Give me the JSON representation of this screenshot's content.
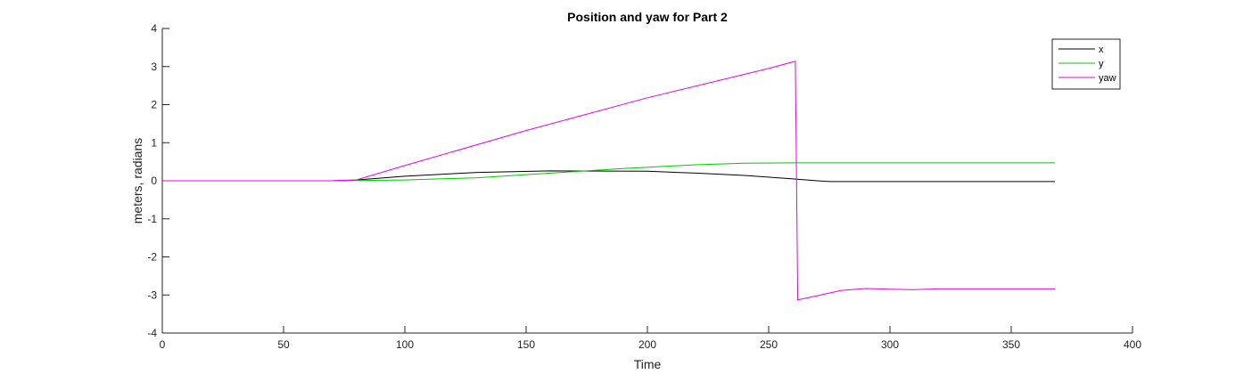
{
  "chart_data": {
    "type": "line",
    "title": "Position and yaw for Part 2",
    "xlabel": "Time",
    "ylabel": "meters, radians",
    "xlim": [
      0,
      400
    ],
    "ylim": [
      -4,
      4
    ],
    "xticks": [
      0,
      50,
      100,
      150,
      200,
      250,
      300,
      350,
      400
    ],
    "yticks": [
      4,
      3,
      2,
      1,
      0,
      -1,
      -2,
      -3,
      -4
    ],
    "grid": false,
    "legend_position": "top-right",
    "series": [
      {
        "name": "x",
        "color": "#000000",
        "x": [
          0,
          70,
          80,
          100,
          130,
          160,
          200,
          220,
          240,
          260,
          270,
          275,
          290,
          368
        ],
        "y": [
          0,
          0,
          0.02,
          0.12,
          0.22,
          0.26,
          0.25,
          0.2,
          0.14,
          0.05,
          0.0,
          -0.02,
          -0.02,
          -0.02
        ]
      },
      {
        "name": "y",
        "color": "#00c800",
        "x": [
          0,
          70,
          100,
          130,
          160,
          190,
          220,
          240,
          260,
          300,
          368
        ],
        "y": [
          0,
          0,
          0.02,
          0.08,
          0.2,
          0.32,
          0.42,
          0.46,
          0.47,
          0.47,
          0.47
        ]
      },
      {
        "name": "yaw",
        "color": "#e600e6",
        "x": [
          0,
          70,
          80,
          100,
          150,
          200,
          250,
          261,
          262,
          270,
          280,
          290,
          300,
          310,
          320,
          368
        ],
        "y": [
          0,
          0,
          0.02,
          0.4,
          1.32,
          2.18,
          2.95,
          3.14,
          -3.13,
          -3.02,
          -2.88,
          -2.83,
          -2.85,
          -2.86,
          -2.84,
          -2.84
        ]
      }
    ]
  }
}
